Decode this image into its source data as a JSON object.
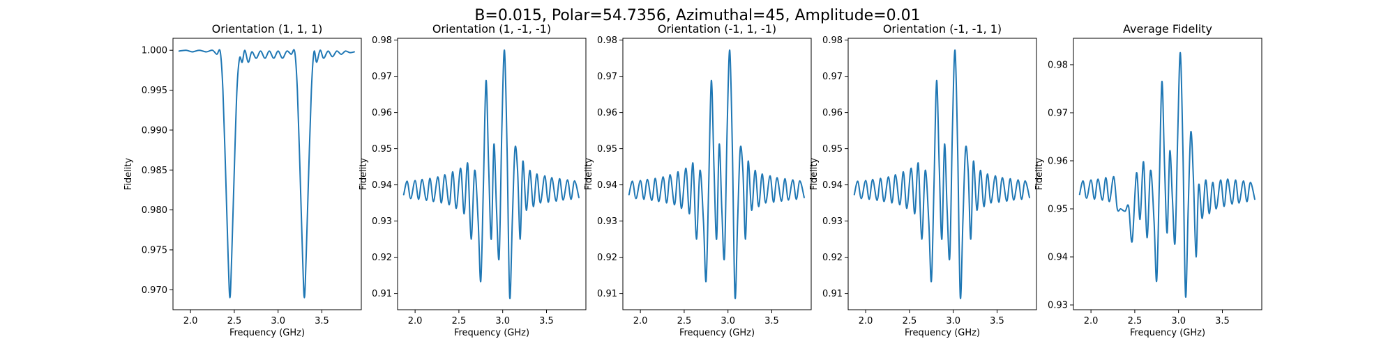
{
  "figure_title": "B=0.015, Polar=54.7356, Azimuthal=45, Amplitude=0.01",
  "colors": {
    "series": "#1f77b4",
    "axes": "#000000",
    "background": "#ffffff"
  },
  "chart_data": [
    {
      "type": "line",
      "title": "Orientation (1, 1, 1)",
      "xlabel": "Frequency (GHz)",
      "ylabel": "Fidelity",
      "xlim": [
        1.8,
        3.95
      ],
      "ylim": [
        0.9675,
        1.0015
      ],
      "xticks": [
        2.0,
        2.5,
        3.0,
        3.5
      ],
      "xtick_labels": [
        "2.0",
        "2.5",
        "3.0",
        "3.5"
      ],
      "yticks": [
        0.97,
        0.975,
        0.98,
        0.985,
        0.99,
        0.995,
        1.0
      ],
      "ytick_labels": [
        "0.970",
        "0.975",
        "0.980",
        "0.985",
        "0.990",
        "0.995",
        "1.000"
      ],
      "grid": false,
      "series": [
        {
          "x": [
            1.87,
            1.95,
            2.02,
            2.1,
            2.18,
            2.25,
            2.3,
            2.34,
            2.37,
            2.4,
            2.43,
            2.45,
            2.47,
            2.5,
            2.53,
            2.56,
            2.59,
            2.62,
            2.66,
            2.7,
            2.75,
            2.8,
            2.85,
            2.9,
            2.95,
            3.0,
            3.05,
            3.1,
            3.15,
            3.19,
            3.22,
            3.25,
            3.28,
            3.3,
            3.32,
            3.35,
            3.38,
            3.41,
            3.44,
            3.48,
            3.52,
            3.57,
            3.62,
            3.67,
            3.72,
            3.77,
            3.82,
            3.87
          ],
          "y": [
            0.9999,
            1.0,
            0.9998,
            1.0,
            0.9998,
            1.0,
            0.9995,
            0.9998,
            0.995,
            0.985,
            0.974,
            0.969,
            0.974,
            0.985,
            0.995,
            0.999,
            0.9985,
            1.0,
            0.9985,
            0.9998,
            0.999,
            0.9999,
            0.999,
            0.9999,
            0.999,
            0.9999,
            0.999,
            0.9999,
            0.9995,
            0.9998,
            0.995,
            0.985,
            0.974,
            0.969,
            0.974,
            0.985,
            0.995,
            0.9998,
            0.9985,
            1.0,
            0.999,
            0.9999,
            0.9992,
            0.9999,
            0.9995,
            0.9999,
            0.9997,
            0.9998
          ]
        }
      ]
    },
    {
      "type": "line",
      "title": "Orientation (1, -1, -1)",
      "xlabel": "Frequency (GHz)",
      "ylabel": "Fidelity",
      "xlim": [
        1.8,
        3.95
      ],
      "ylim": [
        0.9055,
        0.9805
      ],
      "xticks": [
        2.0,
        2.5,
        3.0,
        3.5
      ],
      "xtick_labels": [
        "2.0",
        "2.5",
        "3.0",
        "3.5"
      ],
      "yticks": [
        0.91,
        0.92,
        0.93,
        0.94,
        0.95,
        0.96,
        0.97,
        0.98
      ],
      "ytick_labels": [
        "0.91",
        "0.92",
        "0.93",
        "0.94",
        "0.95",
        "0.96",
        "0.97",
        "0.98"
      ],
      "grid": false,
      "series": [
        {
          "x": [
            1.87,
            1.91,
            1.95,
            2.0,
            2.04,
            2.08,
            2.13,
            2.17,
            2.21,
            2.26,
            2.3,
            2.34,
            2.39,
            2.43,
            2.47,
            2.52,
            2.56,
            2.6,
            2.64,
            2.68,
            2.72,
            2.75,
            2.78,
            2.81,
            2.84,
            2.87,
            2.9,
            2.93,
            2.96,
            2.99,
            3.02,
            3.05,
            3.08,
            3.11,
            3.14,
            3.17,
            3.2,
            3.23,
            3.27,
            3.31,
            3.35,
            3.39,
            3.43,
            3.48,
            3.52,
            3.56,
            3.61,
            3.65,
            3.69,
            3.74,
            3.78,
            3.82,
            3.87
          ],
          "y": [
            0.9373,
            0.941,
            0.9362,
            0.9412,
            0.936,
            0.9415,
            0.9357,
            0.9418,
            0.9354,
            0.9422,
            0.935,
            0.9428,
            0.9345,
            0.9436,
            0.9335,
            0.9446,
            0.932,
            0.946,
            0.925,
            0.944,
            0.93,
            0.9134,
            0.94,
            0.9688,
            0.945,
            0.925,
            0.9512,
            0.933,
            0.92,
            0.955,
            0.9772,
            0.95,
            0.909,
            0.93,
            0.95,
            0.944,
            0.925,
            0.9465,
            0.933,
            0.944,
            0.934,
            0.943,
            0.935,
            0.9425,
            0.9352,
            0.942,
            0.9355,
            0.9417,
            0.9358,
            0.9414,
            0.936,
            0.9411,
            0.9365
          ]
        }
      ]
    },
    {
      "type": "line",
      "title": "Orientation (-1, 1, -1)",
      "xlabel": "Frequency (GHz)",
      "ylabel": "Fidelity",
      "xlim": [
        1.8,
        3.95
      ],
      "ylim": [
        0.9055,
        0.9805
      ],
      "xticks": [
        2.0,
        2.5,
        3.0,
        3.5
      ],
      "xtick_labels": [
        "2.0",
        "2.5",
        "3.0",
        "3.5"
      ],
      "yticks": [
        0.91,
        0.92,
        0.93,
        0.94,
        0.95,
        0.96,
        0.97,
        0.98
      ],
      "ytick_labels": [
        "0.91",
        "0.92",
        "0.93",
        "0.94",
        "0.95",
        "0.96",
        "0.97",
        "0.98"
      ],
      "grid": false,
      "series": [
        {
          "x": [
            1.87,
            1.91,
            1.95,
            2.0,
            2.04,
            2.08,
            2.13,
            2.17,
            2.21,
            2.26,
            2.3,
            2.34,
            2.39,
            2.43,
            2.47,
            2.52,
            2.56,
            2.6,
            2.64,
            2.68,
            2.72,
            2.75,
            2.78,
            2.81,
            2.84,
            2.87,
            2.9,
            2.93,
            2.96,
            2.99,
            3.02,
            3.05,
            3.08,
            3.11,
            3.14,
            3.17,
            3.2,
            3.23,
            3.27,
            3.31,
            3.35,
            3.39,
            3.43,
            3.48,
            3.52,
            3.56,
            3.61,
            3.65,
            3.69,
            3.74,
            3.78,
            3.82,
            3.87
          ],
          "y": [
            0.9373,
            0.941,
            0.9362,
            0.9412,
            0.936,
            0.9415,
            0.9357,
            0.9418,
            0.9354,
            0.9422,
            0.935,
            0.9428,
            0.9345,
            0.9436,
            0.9335,
            0.9446,
            0.932,
            0.946,
            0.925,
            0.944,
            0.93,
            0.9134,
            0.94,
            0.9688,
            0.945,
            0.925,
            0.9512,
            0.933,
            0.92,
            0.955,
            0.9772,
            0.95,
            0.909,
            0.93,
            0.95,
            0.944,
            0.925,
            0.9465,
            0.933,
            0.944,
            0.934,
            0.943,
            0.935,
            0.9425,
            0.9352,
            0.942,
            0.9355,
            0.9417,
            0.9358,
            0.9414,
            0.936,
            0.9411,
            0.9365
          ]
        }
      ]
    },
    {
      "type": "line",
      "title": "Orientation (-1, -1, 1)",
      "xlabel": "Frequency (GHz)",
      "ylabel": "Fidelity",
      "xlim": [
        1.8,
        3.95
      ],
      "ylim": [
        0.9055,
        0.9805
      ],
      "xticks": [
        2.0,
        2.5,
        3.0,
        3.5
      ],
      "xtick_labels": [
        "2.0",
        "2.5",
        "3.0",
        "3.5"
      ],
      "yticks": [
        0.91,
        0.92,
        0.93,
        0.94,
        0.95,
        0.96,
        0.97,
        0.98
      ],
      "ytick_labels": [
        "0.91",
        "0.92",
        "0.93",
        "0.94",
        "0.95",
        "0.96",
        "0.97",
        "0.98"
      ],
      "grid": false,
      "series": [
        {
          "x": [
            1.87,
            1.91,
            1.95,
            2.0,
            2.04,
            2.08,
            2.13,
            2.17,
            2.21,
            2.26,
            2.3,
            2.34,
            2.39,
            2.43,
            2.47,
            2.52,
            2.56,
            2.6,
            2.64,
            2.68,
            2.72,
            2.75,
            2.78,
            2.81,
            2.84,
            2.87,
            2.9,
            2.93,
            2.96,
            2.99,
            3.02,
            3.05,
            3.08,
            3.11,
            3.14,
            3.17,
            3.2,
            3.23,
            3.27,
            3.31,
            3.35,
            3.39,
            3.43,
            3.48,
            3.52,
            3.56,
            3.61,
            3.65,
            3.69,
            3.74,
            3.78,
            3.82,
            3.87
          ],
          "y": [
            0.9373,
            0.941,
            0.9362,
            0.9412,
            0.936,
            0.9415,
            0.9357,
            0.9418,
            0.9354,
            0.9422,
            0.935,
            0.9428,
            0.9345,
            0.9436,
            0.9335,
            0.9446,
            0.932,
            0.946,
            0.925,
            0.944,
            0.93,
            0.9134,
            0.94,
            0.9688,
            0.945,
            0.925,
            0.9512,
            0.933,
            0.92,
            0.955,
            0.9772,
            0.95,
            0.909,
            0.93,
            0.95,
            0.944,
            0.925,
            0.9465,
            0.933,
            0.944,
            0.934,
            0.943,
            0.935,
            0.9425,
            0.9352,
            0.942,
            0.9355,
            0.9417,
            0.9358,
            0.9414,
            0.936,
            0.9411,
            0.9365
          ]
        }
      ]
    },
    {
      "type": "line",
      "title": "Average Fidelity",
      "xlabel": "Frequency (GHz)",
      "ylabel": "Fidelity",
      "xlim": [
        1.8,
        3.95
      ],
      "ylim": [
        0.929,
        0.9855
      ],
      "xticks": [
        2.0,
        2.5,
        3.0,
        3.5
      ],
      "xtick_labels": [
        "2.0",
        "2.5",
        "3.0",
        "3.5"
      ],
      "yticks": [
        0.93,
        0.94,
        0.95,
        0.96,
        0.97,
        0.98
      ],
      "ytick_labels": [
        "0.93",
        "0.94",
        "0.95",
        "0.96",
        "0.97",
        "0.98"
      ],
      "grid": false,
      "series": [
        {
          "x": [
            1.87,
            1.91,
            1.95,
            2.0,
            2.04,
            2.08,
            2.13,
            2.17,
            2.21,
            2.26,
            2.3,
            2.34,
            2.39,
            2.43,
            2.47,
            2.52,
            2.56,
            2.6,
            2.64,
            2.68,
            2.72,
            2.75,
            2.78,
            2.81,
            2.84,
            2.87,
            2.9,
            2.93,
            2.96,
            2.99,
            3.02,
            3.05,
            3.08,
            3.11,
            3.14,
            3.17,
            3.2,
            3.23,
            3.27,
            3.31,
            3.35,
            3.39,
            3.43,
            3.48,
            3.52,
            3.56,
            3.61,
            3.65,
            3.69,
            3.74,
            3.78,
            3.82,
            3.87
          ],
          "y": [
            0.953,
            0.9558,
            0.9522,
            0.956,
            0.952,
            0.9562,
            0.9518,
            0.9565,
            0.9515,
            0.9567,
            0.95,
            0.95,
            0.9495,
            0.9505,
            0.9432,
            0.9575,
            0.9478,
            0.9598,
            0.944,
            0.958,
            0.9475,
            0.935,
            0.955,
            0.9765,
            0.959,
            0.945,
            0.962,
            0.952,
            0.943,
            0.965,
            0.9825,
            0.962,
            0.9318,
            0.95,
            0.966,
            0.956,
            0.94,
            0.955,
            0.948,
            0.956,
            0.949,
            0.9555,
            0.95,
            0.956,
            0.9505,
            0.9562,
            0.951,
            0.956,
            0.9512,
            0.9558,
            0.9515,
            0.9555,
            0.952
          ]
        }
      ]
    }
  ]
}
